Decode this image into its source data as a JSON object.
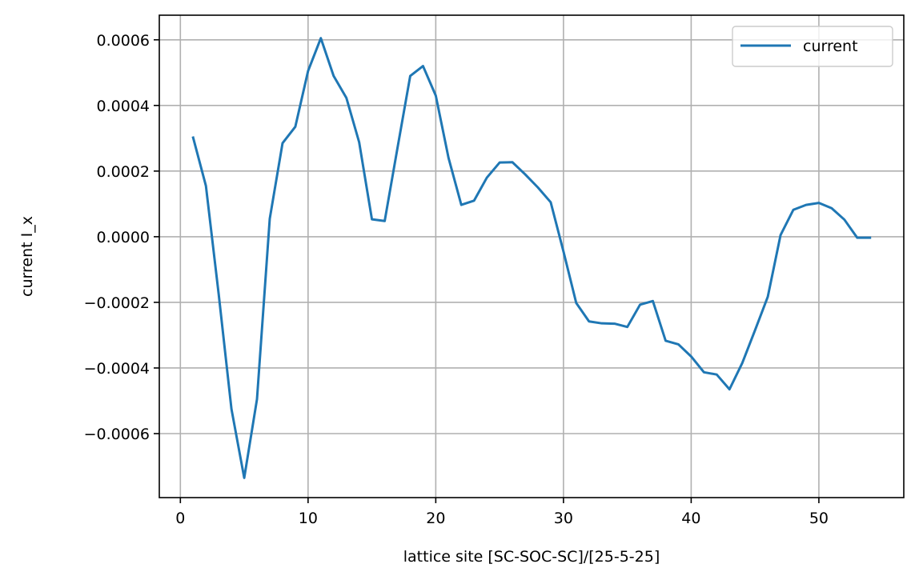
{
  "chart_data": {
    "type": "line",
    "title": "",
    "xlabel": "lattice site [SC-SOC-SC]/[25-5-25]",
    "ylabel": "current I_x",
    "xlim": [
      -1.65,
      56.65
    ],
    "ylim": [
      -0.000795,
      0.000675
    ],
    "x_ticks": [
      0,
      10,
      20,
      30,
      40,
      50
    ],
    "x_tick_labels": [
      "0",
      "10",
      "20",
      "30",
      "40",
      "50"
    ],
    "y_ticks": [
      -0.0006,
      -0.0004,
      -0.0002,
      0.0,
      0.0002,
      0.0004,
      0.0006
    ],
    "y_tick_labels": [
      "−0.0006",
      "−0.0004",
      "−0.0002",
      "0.0000",
      "0.0002",
      "0.0004",
      "0.0006"
    ],
    "grid": true,
    "legend_position": "upper right",
    "series": [
      {
        "name": "current",
        "color": "#1f77b4",
        "x": [
          1,
          2,
          3,
          4,
          5,
          6,
          7,
          8,
          9,
          10,
          11,
          12,
          13,
          14,
          15,
          16,
          17,
          18,
          19,
          20,
          21,
          22,
          23,
          24,
          25,
          26,
          27,
          28,
          29,
          30,
          31,
          32,
          33,
          34,
          35,
          36,
          37,
          38,
          39,
          40,
          41,
          42,
          43,
          44,
          45,
          46,
          47,
          48,
          49,
          50,
          51,
          52,
          53,
          54
        ],
        "y": [
          0.000302,
          0.000155,
          -0.000175,
          -0.000525,
          -0.000735,
          -0.000495,
          5.5e-05,
          0.000285,
          0.000335,
          0.000505,
          0.000605,
          0.00049,
          0.000423,
          0.000288,
          5.3e-05,
          4.8e-05,
          0.00027,
          0.00049,
          0.00052,
          0.00043,
          0.00024,
          9.7e-05,
          0.00011,
          0.00018,
          0.000226,
          0.000227,
          0.00019,
          0.00015,
          0.000105,
          -4.5e-05,
          -0.000202,
          -0.000258,
          -0.000264,
          -0.000265,
          -0.000275,
          -0.000207,
          -0.000196,
          -0.000317,
          -0.000328,
          -0.000365,
          -0.000413,
          -0.00042,
          -0.000465,
          -0.000385,
          -0.000285,
          -0.000183,
          5e-06,
          8.2e-05,
          9.7e-05,
          0.000103,
          8.7e-05,
          5.2e-05,
          -3e-06,
          -3e-06
        ]
      }
    ]
  }
}
